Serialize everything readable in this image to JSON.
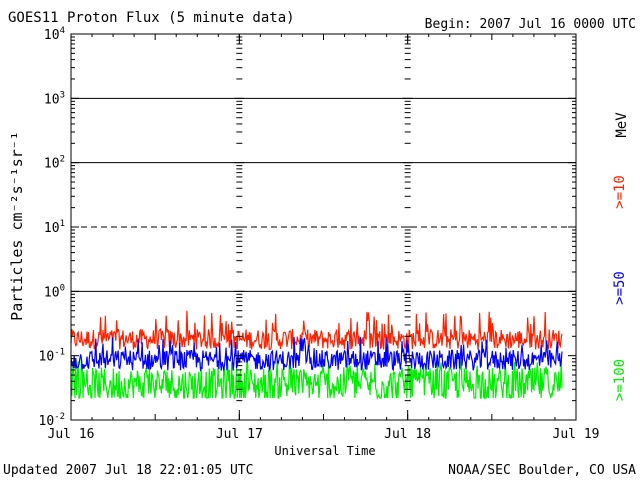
{
  "header": {
    "title": "GOES11 Proton Flux (5 minute data)",
    "begin": "Begin: 2007 Jul 16 0000 UTC"
  },
  "footer": {
    "updated": "Updated 2007 Jul 18 22:01:05 UTC",
    "credit": "NOAA/SEC Boulder, CO USA"
  },
  "chart_data": {
    "type": "line",
    "title": "GOES11 Proton Flux (5 minute data)",
    "xlabel": "Universal Time",
    "ylabel": "Particles cm⁻²s⁻¹sr⁻¹",
    "yscale": "log",
    "ylim": [
      0.01,
      10000
    ],
    "xlim": [
      "2007-07-16 00:00",
      "2007-07-19 00:00"
    ],
    "x_ticks": [
      "Jul 16",
      "Jul 17",
      "Jul 18",
      "Jul 19"
    ],
    "y_ticks": [
      {
        "base": "10",
        "exp": "4"
      },
      {
        "base": "10",
        "exp": "3"
      },
      {
        "base": "10",
        "exp": "2"
      },
      {
        "base": "10",
        "exp": "1"
      },
      {
        "base": "10",
        "exp": "0"
      },
      {
        "base": "10",
        "exp": "-1"
      },
      {
        "base": "10",
        "exp": "-2"
      }
    ],
    "legend_unit": "MeV",
    "series": [
      {
        "name": ">=10",
        "color": "#ff2200",
        "approx_mean": 0.18,
        "range": [
          0.12,
          0.5
        ]
      },
      {
        "name": ">=50",
        "color": "#0000ff",
        "approx_mean": 0.085,
        "range": [
          0.045,
          0.2
        ]
      },
      {
        "name": ">=100",
        "color": "#00ee00",
        "approx_mean": 0.035,
        "range": [
          0.022,
          0.09
        ]
      }
    ],
    "data_end": "2007-07-18 22:00",
    "grid": "horizontal decades (10^1 dashed)"
  }
}
